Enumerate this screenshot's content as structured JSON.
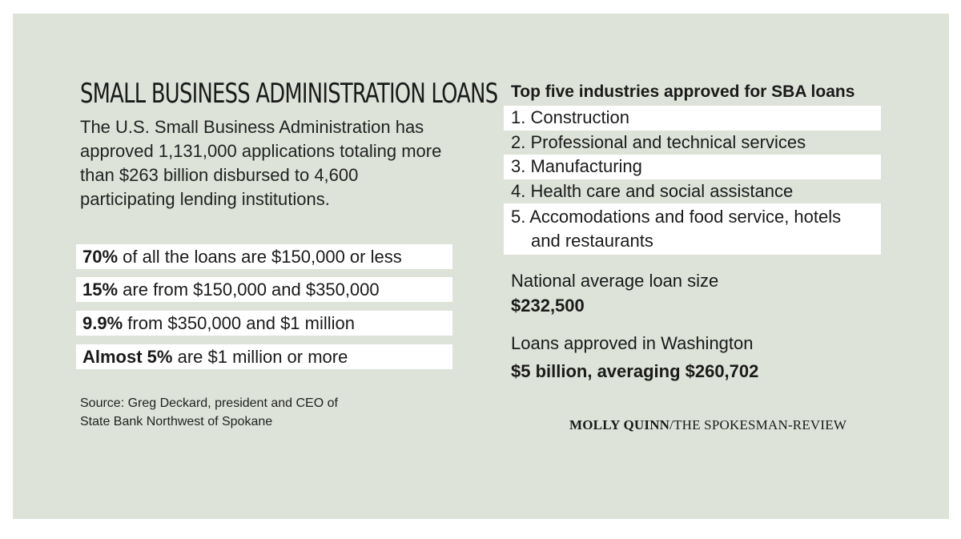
{
  "left": {
    "title": "SMALL BUSINESS ADMINISTRATION LOANS",
    "intro": "The U.S. Small Business Administration has approved 1,131,000 applications totaling more than $263 billion disbursed to 4,600 participating lending institutions.",
    "stats": [
      {
        "bold": "70%",
        "text": " of all the loans are $150,000 or less"
      },
      {
        "bold": "15%",
        "text": " are from $150,000 and $350,000"
      },
      {
        "bold": "9.9%",
        "text": " from $350,000 and $1 million"
      },
      {
        "bold": "Almost 5%",
        "text": " are $1 million or more"
      }
    ],
    "source_line1": "Source: Greg Deckard, president and CEO of",
    "source_line2": "State Bank Northwest of Spokane"
  },
  "right": {
    "heading": "Top five industries approved for SBA loans",
    "industries": [
      {
        "text": "1. Construction"
      },
      {
        "text": "2. Professional and technical services"
      },
      {
        "text": "3. Manufacturing"
      },
      {
        "text": "4. Health care and social assistance"
      },
      {
        "text": "5. Accomodations and food service, hotels",
        "text2": "and restaurants"
      }
    ],
    "avg_label": "National average loan size",
    "avg_value": "$232,500",
    "wa_label": "Loans approved in Washington",
    "wa_value": "$5 billion, averaging $260,702"
  },
  "credit": {
    "name": "MOLLY QUINN",
    "org": "/THE SPOKESMAN-REVIEW"
  },
  "colors": {
    "panel_background": "#dde3d8",
    "row_highlight": "#ffffff",
    "text": "#1a1a1a"
  }
}
